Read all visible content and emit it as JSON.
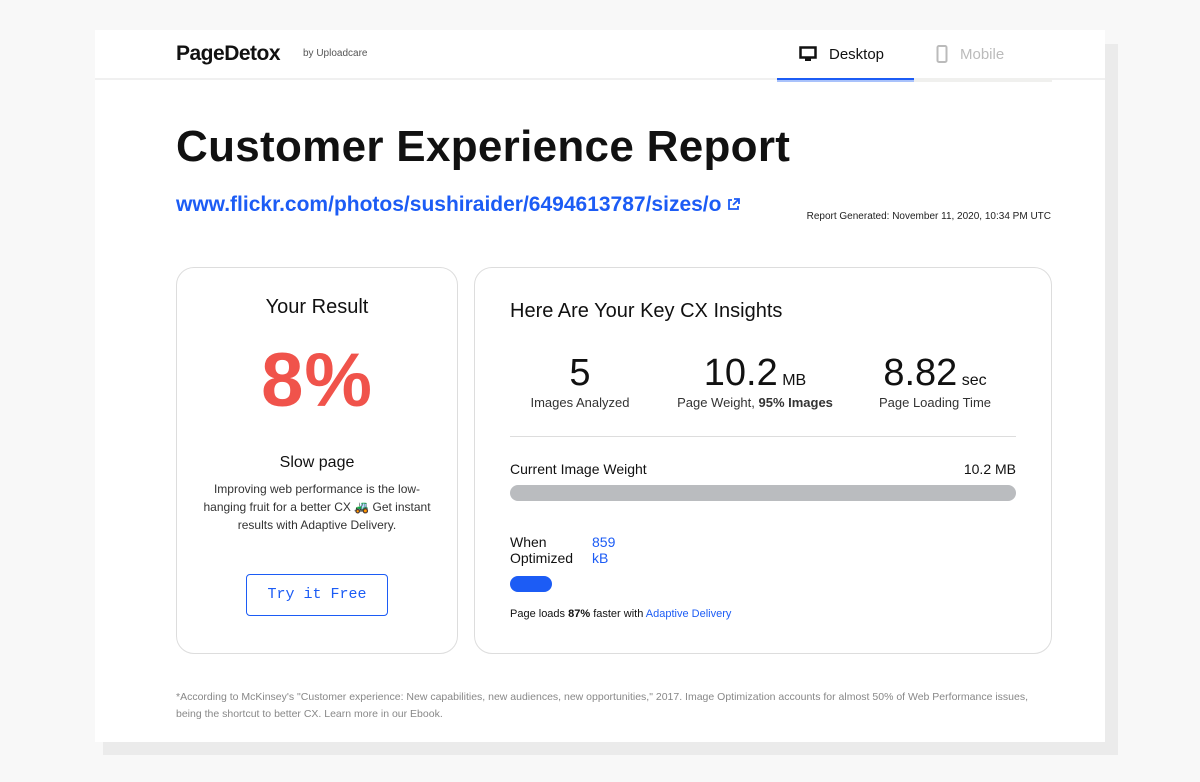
{
  "header": {
    "logo": "PageDetox",
    "by": "by Uploadcare",
    "tabs": [
      {
        "label": "Desktop",
        "icon": "monitor-icon",
        "active": true
      },
      {
        "label": "Mobile",
        "icon": "phone-icon",
        "active": false
      }
    ]
  },
  "title": "Customer Experience Report",
  "url": "www.flickr.com/photos/sushiraider/6494613787/sizes/o",
  "generated": "Report Generated: November 11, 2020, 10:34 PM UTC",
  "result": {
    "heading": "Your Result",
    "score": "8%",
    "status": "Slow page",
    "desc": "Improving web performance is the low-hanging fruit for a better CX 🚜 Get instant results with Adaptive Delivery.",
    "button": "Try it Free"
  },
  "insights": {
    "heading": "Here Are Your Key CX Insights",
    "stats": [
      {
        "value": "5",
        "unit": "",
        "label": "Images Analyzed"
      },
      {
        "value": "10.2",
        "unit": "MB",
        "label": "Page Weight, ",
        "label_bold": "95% Images"
      },
      {
        "value": "8.82",
        "unit": "sec",
        "label": "Page Loading Time"
      }
    ],
    "current_label": "Current Image Weight",
    "current_value": "10.2 MB",
    "optimized_label": "When Optimized",
    "optimized_value": "859 kB",
    "optimized_fraction": 0.082,
    "faster_pre": "Page loads ",
    "faster_pct": "87%",
    "faster_mid": " faster with ",
    "faster_link": "Adaptive Delivery"
  },
  "footnote": "*According to McKinsey's \"Customer experience: New capabilities, new audiences, new opportunities,\" 2017. Image Optimization accounts for almost 50% of Web Performance issues, being the shortcut to better CX. Learn more in our Ebook."
}
